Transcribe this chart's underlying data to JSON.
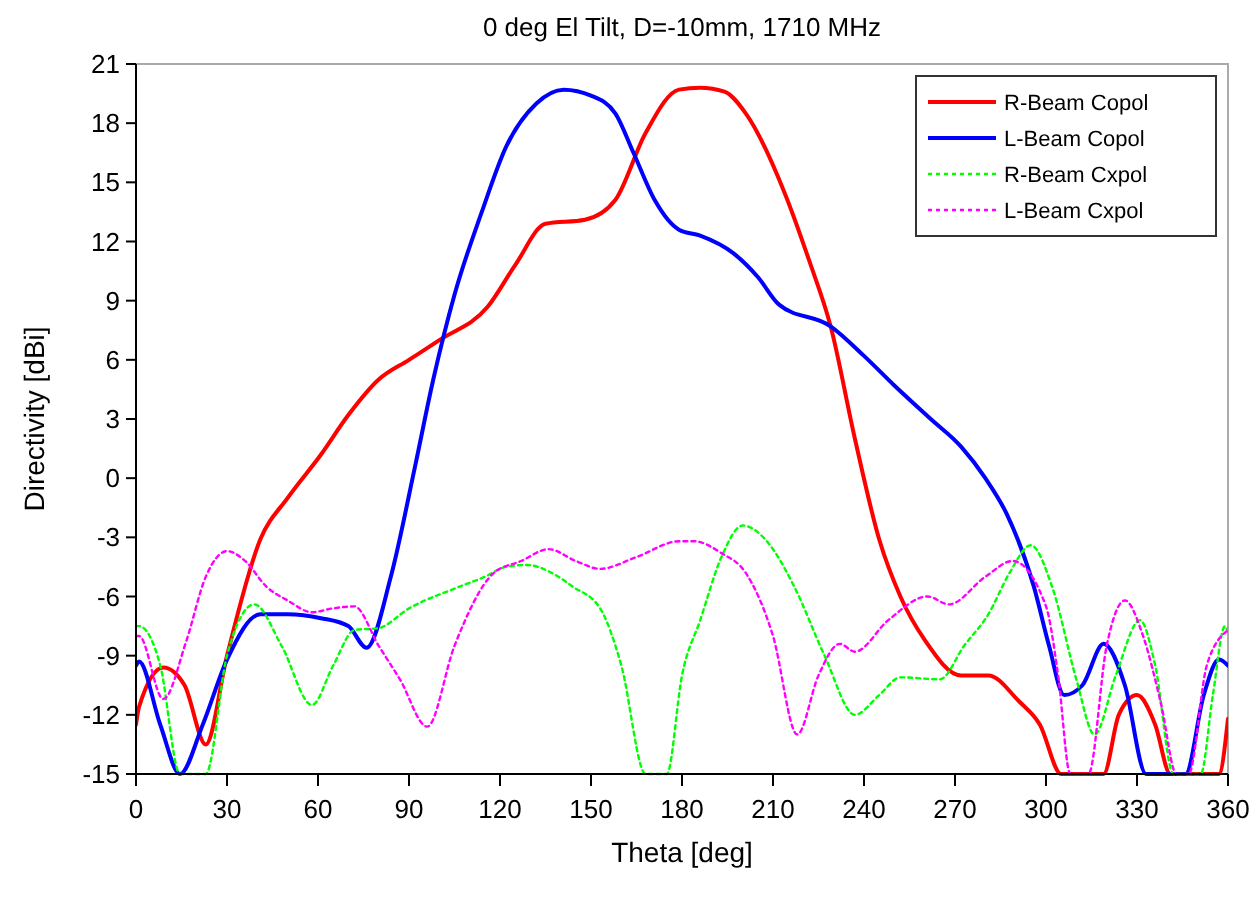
{
  "chart_data": {
    "type": "line",
    "title": "0 deg El Tilt, D=-10mm, 1710 MHz",
    "xlabel": "Theta [deg]",
    "ylabel": "Directivity [dBi]",
    "xlim": [
      0,
      360
    ],
    "ylim": [
      -15,
      21
    ],
    "xticks": [
      0,
      30,
      60,
      90,
      120,
      150,
      180,
      210,
      240,
      270,
      300,
      330,
      360
    ],
    "yticks": [
      -15,
      -12,
      -9,
      -6,
      -3,
      0,
      3,
      6,
      9,
      12,
      15,
      18,
      21
    ],
    "grid": false,
    "legend": "top right",
    "series": [
      {
        "name": "R-Beam Copol",
        "color": "#ff0000",
        "line_style": "solid",
        "x": [
          0,
          1,
          9,
          16,
          23,
          30,
          41,
          50,
          61,
          70,
          80,
          90,
          100,
          116,
          125,
          135,
          148,
          158,
          168,
          179,
          186,
          194,
          201,
          214,
          222,
          229,
          237,
          245,
          252,
          260,
          272,
          281,
          291,
          298,
          305,
          319,
          324,
          330,
          336,
          341,
          357,
          360
        ],
        "values": [
          -12.5,
          -11.6,
          -9.6,
          -10.5,
          -13.5,
          -9,
          -3.1,
          -1,
          1.2,
          3.2,
          5,
          6,
          7,
          8.7,
          10.8,
          12.9,
          13.1,
          14.1,
          17.5,
          19.7,
          19.8,
          19.6,
          18.5,
          14.4,
          11,
          7.7,
          2,
          -3.1,
          -6,
          -8.2,
          -10,
          -10,
          -11.3,
          -12.5,
          -15,
          -15,
          -12,
          -11,
          -12.5,
          -15,
          -15,
          -12.2
        ]
      },
      {
        "name": "L-Beam Copol",
        "color": "#0000ff",
        "line_style": "solid",
        "x": [
          0,
          1,
          8,
          14.5,
          22,
          30,
          41,
          50,
          61,
          70,
          76,
          84,
          92,
          98,
          105,
          114,
          122,
          132,
          141,
          150,
          158,
          164,
          171,
          179,
          186,
          197,
          205,
          212,
          229,
          240,
          250,
          262,
          272,
          280,
          287,
          296,
          301,
          306,
          312,
          319,
          326,
          333,
          346,
          352,
          357,
          360
        ],
        "values": [
          -9.5,
          -9.3,
          -12.5,
          -15,
          -12.5,
          -9.2,
          -6.9,
          -6.9,
          -7.1,
          -7.5,
          -8.6,
          -5,
          0.6,
          5,
          9.3,
          13.5,
          16.8,
          19,
          19.7,
          19.4,
          18.5,
          16.5,
          14.1,
          12.6,
          12.3,
          11.4,
          10.2,
          8.8,
          7.7,
          6.2,
          4.7,
          3,
          1.6,
          0,
          -1.8,
          -5.5,
          -8.5,
          -11,
          -10.5,
          -8.4,
          -10.5,
          -15,
          -15,
          -11,
          -9.2,
          -9.5
        ]
      },
      {
        "name": "R-Beam Cxpol",
        "color": "#00ff00",
        "line_style": "dotted",
        "x": [
          0,
          1,
          8,
          14.5,
          23,
          30,
          39,
          48,
          58,
          65,
          72,
          80,
          90,
          105,
          115,
          122,
          129,
          137,
          144,
          153,
          160,
          168,
          175,
          180,
          186,
          193,
          200,
          208,
          217,
          227,
          237,
          245,
          252,
          265,
          273,
          281,
          288,
          295,
          302,
          310,
          316,
          323,
          331,
          336,
          342,
          351,
          355,
          359,
          360
        ],
        "values": [
          -7.5,
          -7.5,
          -9.5,
          -15,
          -15,
          -9,
          -6.4,
          -8.5,
          -11.5,
          -9.5,
          -7.7,
          -7.6,
          -6.6,
          -5.6,
          -5,
          -4.5,
          -4.4,
          -4.8,
          -5.5,
          -6.6,
          -9.5,
          -15,
          -15,
          -10,
          -7.2,
          -4,
          -2.4,
          -3.2,
          -5.5,
          -9,
          -12,
          -11,
          -10.1,
          -10.2,
          -8.5,
          -6.9,
          -4.8,
          -3.4,
          -5.5,
          -10.2,
          -13,
          -10,
          -7.2,
          -9.5,
          -15,
          -15,
          -11,
          -7.5,
          -7.8
        ]
      },
      {
        "name": "L-Beam Cxpol",
        "color": "#ff00ff",
        "line_style": "dotted",
        "x": [
          0,
          1,
          9,
          16.5,
          23,
          30,
          36,
          43,
          50,
          58,
          65,
          72,
          80,
          87,
          96,
          105,
          118,
          127,
          136,
          145,
          153,
          165,
          179,
          184,
          193,
          201,
          210,
          218,
          225,
          232,
          237,
          248,
          261,
          268,
          280,
          289,
          300,
          304,
          308,
          314,
          320,
          326,
          332,
          338,
          343,
          347,
          353,
          360
        ],
        "values": [
          -8,
          -8,
          -11.2,
          -8.3,
          -5,
          -3.7,
          -4.2,
          -5.5,
          -6.2,
          -6.8,
          -6.6,
          -6.5,
          -8.5,
          -10.2,
          -12.6,
          -8.5,
          -4.8,
          -4.2,
          -3.6,
          -4.2,
          -4.6,
          -4,
          -3.2,
          -3.2,
          -3.8,
          -4.8,
          -8,
          -13,
          -10,
          -8.4,
          -8.8,
          -7.2,
          -6,
          -6.4,
          -5,
          -4.2,
          -6.5,
          -10,
          -15,
          -15,
          -8.5,
          -6.2,
          -8,
          -11.5,
          -15,
          -15,
          -9.5,
          -7.7
        ]
      }
    ]
  }
}
